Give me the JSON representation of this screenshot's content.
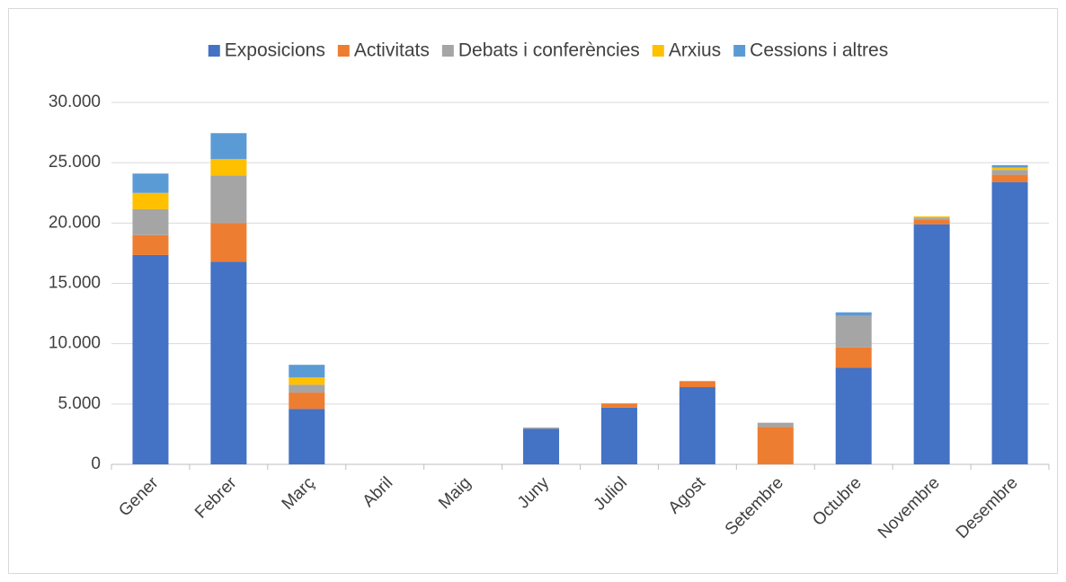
{
  "chart_data": {
    "type": "stacked_bar",
    "categories": [
      "Gener",
      "Febrer",
      "Març",
      "Abril",
      "Maig",
      "Juny",
      "Juliol",
      "Agost",
      "Setembre",
      "Octubre",
      "Novembre",
      "Desembre"
    ],
    "series": [
      {
        "name": "Exposicions",
        "color": "#4472c4",
        "values": [
          17350,
          16800,
          4600,
          0,
          0,
          2950,
          4700,
          6400,
          0,
          8000,
          19900,
          23400
        ]
      },
      {
        "name": "Activitats",
        "color": "#ed7d31",
        "values": [
          1650,
          3200,
          1350,
          0,
          0,
          0,
          350,
          500,
          3100,
          1700,
          400,
          600
        ]
      },
      {
        "name": "Debats i conferències",
        "color": "#a5a5a5",
        "values": [
          2150,
          3950,
          650,
          0,
          0,
          100,
          0,
          0,
          350,
          2600,
          150,
          400
        ]
      },
      {
        "name": "Arxius",
        "color": "#ffc000",
        "values": [
          1350,
          1350,
          600,
          0,
          0,
          0,
          0,
          0,
          0,
          0,
          100,
          200
        ]
      },
      {
        "name": "Cessions i altres",
        "color": "#5b9bd5",
        "values": [
          1600,
          2150,
          1050,
          0,
          0,
          0,
          0,
          0,
          0,
          300,
          0,
          200
        ]
      }
    ],
    "ylim": [
      0,
      30000
    ],
    "yticks": [
      0,
      {
        "value": 5000,
        "label": "5.000"
      },
      {
        "value": 10000,
        "label": "10.000"
      },
      {
        "value": 15000,
        "label": "15.000"
      },
      {
        "value": 20000,
        "label": "20.000"
      },
      {
        "value": 25000,
        "label": "25.000"
      },
      {
        "value": 30000,
        "label": "30.000"
      }
    ],
    "grid": true,
    "legend": "top"
  }
}
